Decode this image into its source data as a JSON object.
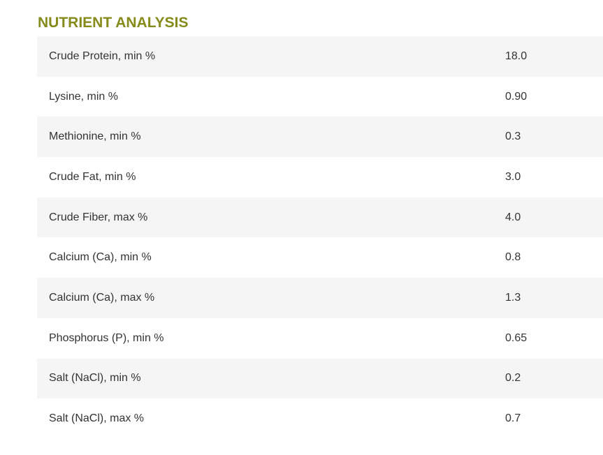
{
  "section": {
    "title": "NUTRIENT ANALYSIS"
  },
  "nutrients": [
    {
      "name": "Crude Protein, min %",
      "value": "18.0"
    },
    {
      "name": "Lysine, min %",
      "value": "0.90"
    },
    {
      "name": "Methionine, min %",
      "value": "0.3"
    },
    {
      "name": "Crude Fat, min %",
      "value": "3.0"
    },
    {
      "name": "Crude Fiber, max %",
      "value": "4.0"
    },
    {
      "name": "Calcium (Ca), min %",
      "value": "0.8"
    },
    {
      "name": "Calcium (Ca), max %",
      "value": "1.3"
    },
    {
      "name": "Phosphorus (P), min %",
      "value": "0.65"
    },
    {
      "name": "Salt (NaCl), min %",
      "value": "0.2"
    },
    {
      "name": "Salt (NaCl), max %",
      "value": "0.7"
    }
  ],
  "colors": {
    "title": "#868b1b",
    "row_stripe": "#f5f5f5",
    "text": "#333333"
  }
}
